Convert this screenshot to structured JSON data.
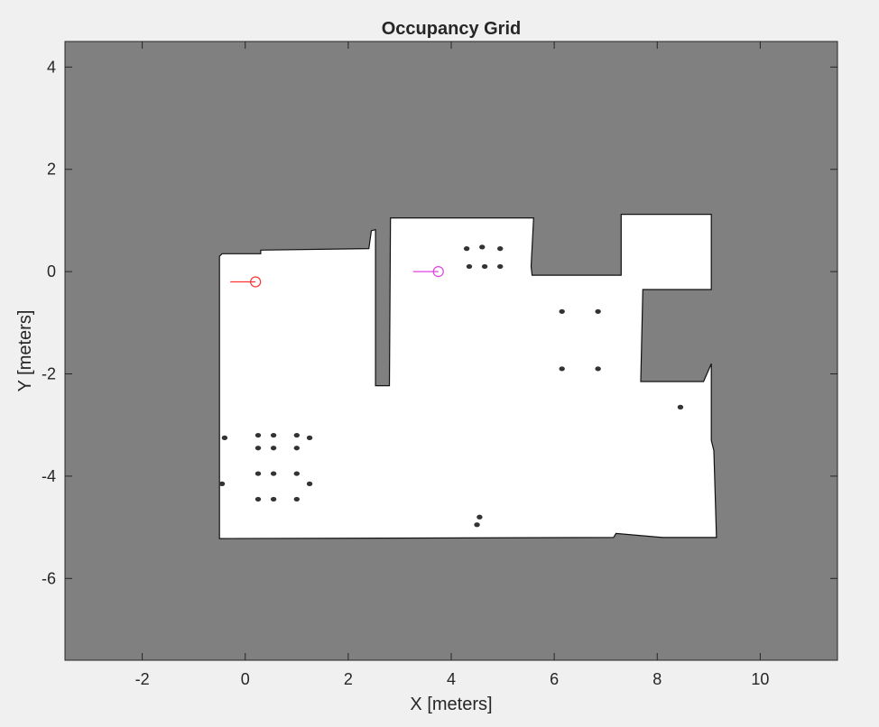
{
  "chart_data": {
    "type": "heatmap",
    "title": "Occupancy Grid",
    "xlabel": "X [meters]",
    "ylabel": "Y [meters]",
    "xlim": [
      -3.5,
      11.5
    ],
    "ylim": [
      -7.6,
      4.5
    ],
    "xticks": [
      -2,
      0,
      2,
      4,
      6,
      8,
      10
    ],
    "yticks": [
      -6,
      -4,
      -2,
      0,
      2,
      4
    ],
    "xtick_labels": [
      "-2",
      "0",
      "2",
      "4",
      "6",
      "8",
      "10"
    ],
    "ytick_labels": [
      "-6",
      "-4",
      "-2",
      "0",
      "2",
      "4"
    ],
    "grid": false,
    "colors": {
      "unknown": "#808080",
      "free": "#ffffff",
      "occupied": "#000000",
      "pose_1": "#ff3333",
      "pose_2": "#e040e0",
      "background": "#f0f0f0"
    },
    "free_space_polygon": [
      [
        -0.45,
        0.35
      ],
      [
        0.3,
        0.35
      ],
      [
        0.3,
        0.42
      ],
      [
        2.4,
        0.45
      ],
      [
        2.45,
        0.8
      ],
      [
        2.53,
        0.82
      ],
      [
        2.53,
        -2.23
      ],
      [
        2.8,
        -2.23
      ],
      [
        2.82,
        1.05
      ],
      [
        5.6,
        1.05
      ],
      [
        5.55,
        0.1
      ],
      [
        5.57,
        -0.07
      ],
      [
        7.3,
        -0.07
      ],
      [
        7.3,
        1.12
      ],
      [
        9.05,
        1.12
      ],
      [
        9.05,
        -0.35
      ],
      [
        7.72,
        -0.35
      ],
      [
        7.68,
        -2.15
      ],
      [
        8.9,
        -2.15
      ],
      [
        9.05,
        -1.8
      ],
      [
        9.05,
        -3.3
      ],
      [
        9.1,
        -3.5
      ],
      [
        9.15,
        -5.2
      ],
      [
        8.1,
        -5.2
      ],
      [
        7.2,
        -5.12
      ],
      [
        7.15,
        -5.2
      ],
      [
        -0.5,
        -5.22
      ],
      [
        -0.5,
        0.3
      ]
    ],
    "obstacles": [
      [
        -0.4,
        -3.25
      ],
      [
        0.25,
        -3.2
      ],
      [
        0.55,
        -3.2
      ],
      [
        1.0,
        -3.2
      ],
      [
        1.25,
        -3.25
      ],
      [
        0.25,
        -3.45
      ],
      [
        0.55,
        -3.45
      ],
      [
        1.0,
        -3.45
      ],
      [
        -0.45,
        -4.15
      ],
      [
        0.25,
        -3.95
      ],
      [
        0.55,
        -3.95
      ],
      [
        1.0,
        -3.95
      ],
      [
        1.25,
        -4.15
      ],
      [
        0.25,
        -4.45
      ],
      [
        0.55,
        -4.45
      ],
      [
        1.0,
        -4.45
      ],
      [
        4.55,
        -4.8
      ],
      [
        4.5,
        -4.95
      ],
      [
        6.15,
        -0.78
      ],
      [
        6.85,
        -0.78
      ],
      [
        6.15,
        -1.9
      ],
      [
        6.85,
        -1.9
      ],
      [
        4.3,
        0.45
      ],
      [
        4.6,
        0.48
      ],
      [
        4.95,
        0.45
      ],
      [
        4.35,
        0.1
      ],
      [
        4.65,
        0.1
      ],
      [
        4.95,
        0.1
      ],
      [
        8.45,
        -2.65
      ]
    ],
    "poses": [
      {
        "x": 0.2,
        "y": -0.2,
        "theta_deg": 180,
        "color": "#ff3333"
      },
      {
        "x": 3.75,
        "y": 0.0,
        "theta_deg": 180,
        "color": "#e040e0"
      }
    ]
  }
}
